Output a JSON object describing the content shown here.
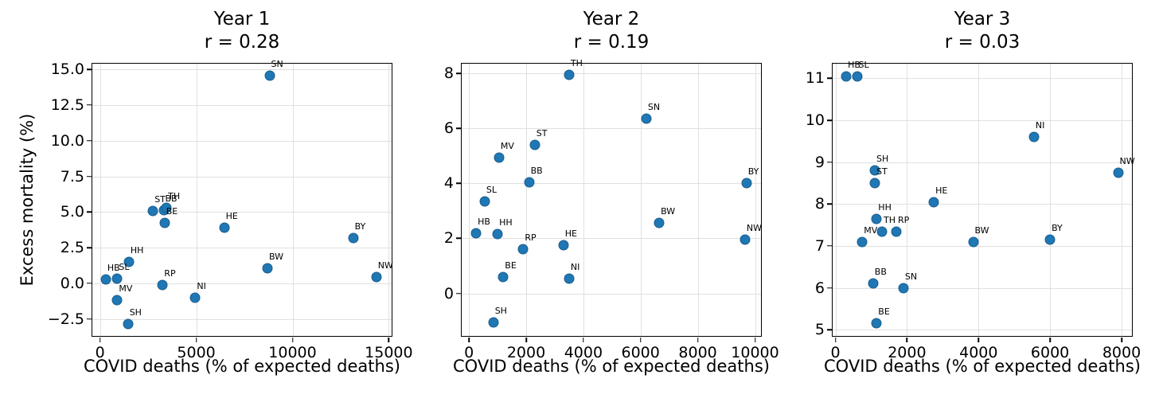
{
  "colors": {
    "marker_fill": "#1f77b4",
    "marker_edge": "#1a5e8e",
    "grid": "#e0e0e0",
    "spine": "#000000",
    "text": "#000000",
    "background": "#ffffff"
  },
  "chart_data": [
    {
      "type": "scatter",
      "title": "Year 1",
      "subtitle": "r = 0.28",
      "r": 0.28,
      "xlabel": "COVID deaths (% of expected deaths)",
      "ylabel": "Excess mortality (%)",
      "xlim": [
        -400,
        15150
      ],
      "ylim": [
        -3.7,
        15.4
      ],
      "grid": true,
      "xticks": {
        "values": [
          0,
          5000,
          10000,
          15000
        ],
        "labels": [
          "0",
          "5000",
          "10000",
          "15000"
        ]
      },
      "yticks": {
        "values": [
          -2.5,
          0,
          2.5,
          5,
          7.5,
          10,
          12.5,
          15
        ],
        "labels": [
          "−2.5",
          "0.0",
          "2.5",
          "5.0",
          "7.5",
          "10.0",
          "12.5",
          "15.0"
        ]
      },
      "points": [
        {
          "label": "HB",
          "x": 300,
          "y": 0.25
        },
        {
          "label": "SL",
          "x": 900,
          "y": 0.3
        },
        {
          "label": "MV",
          "x": 900,
          "y": -1.2
        },
        {
          "label": "SH",
          "x": 1450,
          "y": -2.85
        },
        {
          "label": "HH",
          "x": 1500,
          "y": 1.5
        },
        {
          "label": "ST",
          "x": 2750,
          "y": 5.05
        },
        {
          "label": "BB",
          "x": 3300,
          "y": 5.15
        },
        {
          "label": "TH",
          "x": 3450,
          "y": 5.3
        },
        {
          "label": "BE",
          "x": 3350,
          "y": 4.25
        },
        {
          "label": "RP",
          "x": 3250,
          "y": -0.1
        },
        {
          "label": "NI",
          "x": 4950,
          "y": -1.0
        },
        {
          "label": "HE",
          "x": 6450,
          "y": 3.9
        },
        {
          "label": "BW",
          "x": 8700,
          "y": 1.05
        },
        {
          "label": "SN",
          "x": 8800,
          "y": 14.55
        },
        {
          "label": "BY",
          "x": 13150,
          "y": 3.2
        },
        {
          "label": "NW",
          "x": 14350,
          "y": 0.45
        }
      ]
    },
    {
      "type": "scatter",
      "title": "Year 2",
      "subtitle": "r = 0.19",
      "r": 0.19,
      "xlabel": "COVID deaths (% of expected deaths)",
      "ylabel": "",
      "xlim": [
        -255,
        10210
      ],
      "ylim": [
        -1.55,
        8.35
      ],
      "grid": true,
      "xticks": {
        "values": [
          0,
          2000,
          4000,
          6000,
          8000,
          10000
        ],
        "labels": [
          "0",
          "2000",
          "4000",
          "6000",
          "8000",
          "10000"
        ]
      },
      "yticks": {
        "values": [
          0,
          2,
          4,
          6,
          8
        ],
        "labels": [
          "0",
          "2",
          "4",
          "6",
          "8"
        ]
      },
      "points": [
        {
          "label": "HB",
          "x": 250,
          "y": 2.2
        },
        {
          "label": "SL",
          "x": 550,
          "y": 3.35
        },
        {
          "label": "SH",
          "x": 850,
          "y": -1.05
        },
        {
          "label": "HH",
          "x": 1000,
          "y": 2.15
        },
        {
          "label": "MV",
          "x": 1050,
          "y": 4.95
        },
        {
          "label": "BE",
          "x": 1200,
          "y": 0.6
        },
        {
          "label": "RP",
          "x": 1900,
          "y": 1.6
        },
        {
          "label": "BB",
          "x": 2100,
          "y": 4.05
        },
        {
          "label": "ST",
          "x": 2300,
          "y": 5.4
        },
        {
          "label": "HE",
          "x": 3300,
          "y": 1.75
        },
        {
          "label": "TH",
          "x": 3500,
          "y": 7.95
        },
        {
          "label": "NI",
          "x": 3500,
          "y": 0.55
        },
        {
          "label": "SN",
          "x": 6200,
          "y": 6.35
        },
        {
          "label": "BW",
          "x": 6650,
          "y": 2.55
        },
        {
          "label": "NW",
          "x": 9650,
          "y": 1.95
        },
        {
          "label": "BY",
          "x": 9700,
          "y": 4.0
        }
      ]
    },
    {
      "type": "scatter",
      "title": "Year 3",
      "subtitle": "r = 0.03",
      "r": 0.03,
      "xlabel": "COVID deaths (% of expected deaths)",
      "ylabel": "",
      "xlim": [
        -80,
        8290
      ],
      "ylim": [
        4.85,
        11.35
      ],
      "grid": true,
      "xticks": {
        "values": [
          0,
          2000,
          4000,
          6000,
          8000
        ],
        "labels": [
          "0",
          "2000",
          "4000",
          "6000",
          "8000"
        ]
      },
      "yticks": {
        "values": [
          5,
          6,
          7,
          8,
          9,
          10,
          11
        ],
        "labels": [
          "5",
          "6",
          "7",
          "8",
          "9",
          "10",
          "11"
        ]
      },
      "points": [
        {
          "label": "HB",
          "x": 300,
          "y": 11.05
        },
        {
          "label": "SL",
          "x": 600,
          "y": 11.05
        },
        {
          "label": "MV",
          "x": 750,
          "y": 7.1
        },
        {
          "label": "BB",
          "x": 1050,
          "y": 6.1
        },
        {
          "label": "SH",
          "x": 1100,
          "y": 8.8
        },
        {
          "label": "ST",
          "x": 1100,
          "y": 8.5
        },
        {
          "label": "HH",
          "x": 1150,
          "y": 7.65
        },
        {
          "label": "BE",
          "x": 1150,
          "y": 5.15
        },
        {
          "label": "TH",
          "x": 1300,
          "y": 7.35
        },
        {
          "label": "RP",
          "x": 1700,
          "y": 7.35
        },
        {
          "label": "SN",
          "x": 1900,
          "y": 6.0
        },
        {
          "label": "HE",
          "x": 2750,
          "y": 8.05
        },
        {
          "label": "BW",
          "x": 3850,
          "y": 7.1
        },
        {
          "label": "NI",
          "x": 5550,
          "y": 9.6
        },
        {
          "label": "BY",
          "x": 6000,
          "y": 7.15
        },
        {
          "label": "NW",
          "x": 7900,
          "y": 8.75
        }
      ]
    }
  ]
}
